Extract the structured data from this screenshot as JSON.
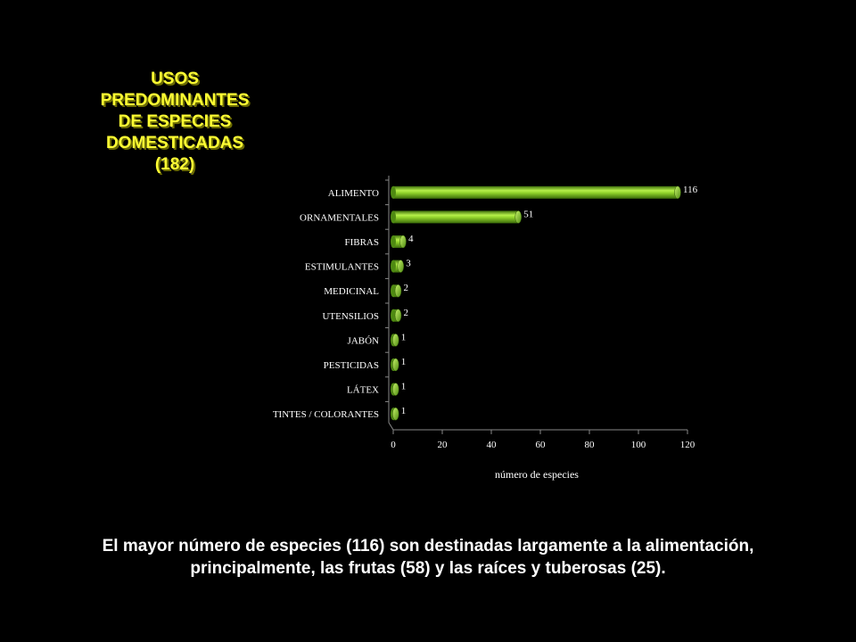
{
  "title": "USOS\nPREDOMINANTES\nDE ESPECIES\nDOMESTICADAS\n(182)",
  "caption": "El mayor número de especies (116) son destinadas largamente a la alimentación, principalmente, las frutas (58) y las raíces y tuberosas (25).",
  "colors": {
    "title": "#ffff33",
    "bar": "#8fd12a",
    "background": "#000000"
  },
  "chart_data": {
    "type": "bar",
    "orientation": "horizontal",
    "categories": [
      "ALIMENTO",
      "ORNAMENTALES",
      "FIBRAS",
      "ESTIMULANTES",
      "MEDICINAL",
      "UTENSILIOS",
      "JABÓN",
      "PESTICIDAS",
      "LÁTEX",
      "TINTES / COLORANTES"
    ],
    "values": [
      116,
      51,
      4,
      3,
      2,
      2,
      1,
      1,
      1,
      1
    ],
    "data_labels": [
      "116",
      "51",
      "4",
      "3",
      "2",
      "2",
      "1",
      "1",
      "1",
      "1"
    ],
    "xlabel": "número de especies",
    "ylabel": "",
    "xlim": [
      0,
      120
    ],
    "xticks": [
      "0",
      "20",
      "40",
      "60",
      "80",
      "100",
      "120"
    ],
    "grid": false,
    "legend": "none"
  }
}
